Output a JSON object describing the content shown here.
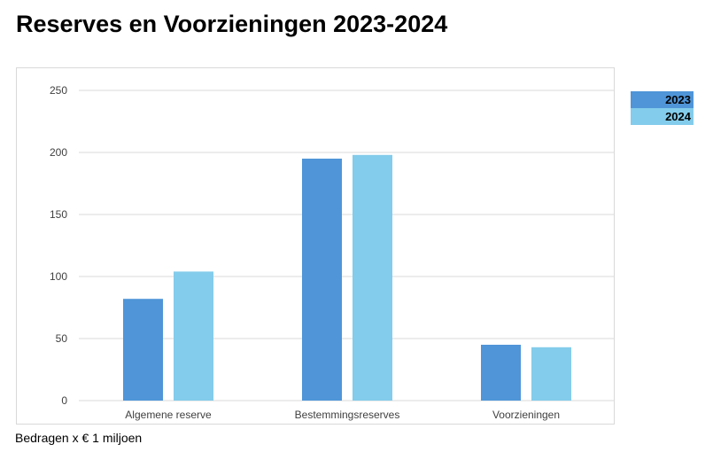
{
  "header": {
    "title": "Reserves en Voorzieningen 2023-2024"
  },
  "footnote": "Bedragen x € 1 miljoen",
  "colors": {
    "series_2023": "#4f95d8",
    "series_2024": "#83cceb",
    "grid": "#d9d9d9"
  },
  "chart_data": {
    "type": "bar",
    "title": "Reserves en Voorzieningen 2023-2024",
    "categories": [
      "Algemene reserve",
      "Bestemmingsreserves",
      "Voorzieningen"
    ],
    "series": [
      {
        "name": "2023",
        "values": [
          82,
          195,
          45
        ]
      },
      {
        "name": "2024",
        "values": [
          104,
          198,
          43
        ]
      }
    ],
    "ylim": [
      0,
      250
    ],
    "yticks": [
      0,
      50,
      100,
      150,
      200,
      250
    ],
    "grid": true,
    "legend": "right"
  }
}
